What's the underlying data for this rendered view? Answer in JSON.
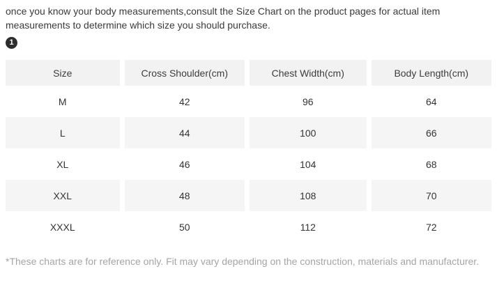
{
  "intro": {
    "text": "once you know your body measurements,consult the Size Chart on the product pages for actual item measurements to determine which size you should purchase."
  },
  "badge": {
    "label": "1"
  },
  "size_chart": {
    "columns": [
      "Size",
      "Cross Shoulder(cm)",
      "Chest Width(cm)",
      "Body Length(cm)"
    ],
    "rows": [
      [
        "M",
        "42",
        "96",
        "64"
      ],
      [
        "L",
        "44",
        "100",
        "66"
      ],
      [
        "XL",
        "46",
        "104",
        "68"
      ],
      [
        "XXL",
        "48",
        "108",
        "70"
      ],
      [
        "XXXL",
        "50",
        "112",
        "72"
      ]
    ]
  },
  "footnote": {
    "text": "*These charts are for reference only. Fit may vary depending on the construction, materials and manufacturer."
  },
  "colors": {
    "header_bg": "#f2f2f2",
    "row_alt_bg": "#f5f5f5",
    "body_text": "#333333",
    "footnote_text": "#a5a5a5",
    "badge_bg": "#2d2d2d"
  }
}
